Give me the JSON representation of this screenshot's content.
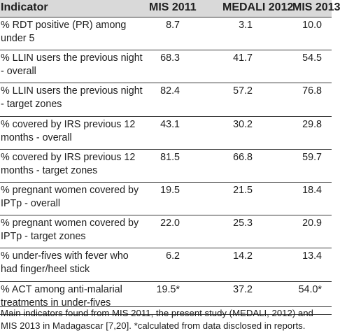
{
  "header": {
    "indicator": "Indicator",
    "col1": "MIS 2011",
    "col2": "MEDALI 2012",
    "col3": "MIS 2013"
  },
  "rows": [
    {
      "label": "% RDT positive (PR) among under 5",
      "mis2011": "8.7",
      "medali2012": "3.1",
      "mis2013": "10.0"
    },
    {
      "label": "% LLIN users the previous night - overall",
      "mis2011": "68.3",
      "medali2012": "41.7",
      "mis2013": "54.5"
    },
    {
      "label": "% LLIN users the previous night - target zones",
      "mis2011": "82.4",
      "medali2012": "57.2",
      "mis2013": "76.8"
    },
    {
      "label": "% covered by IRS previous 12 months - overall",
      "mis2011": "43.1",
      "medali2012": "30.2",
      "mis2013": "29.8"
    },
    {
      "label": "% covered by IRS previous 12 months - target zones",
      "mis2011": "81.5",
      "medali2012": "66.8",
      "mis2013": "59.7"
    },
    {
      "label": "% pregnant women covered by IPTp - overall",
      "mis2011": "19.5",
      "medali2012": "21.5",
      "mis2013": "18.4"
    },
    {
      "label": "% pregnant women covered by IPTp - target zones",
      "mis2011": "22.0",
      "medali2012": "25.3",
      "mis2013": "20.9"
    },
    {
      "label": "% under-fives with fever who had finger/heel stick",
      "mis2011": "6.2",
      "medali2012": "14.2",
      "mis2013": "13.4"
    },
    {
      "label": "% ACT among anti-malarial treatments in under-fives",
      "mis2011": "19.5*",
      "medali2012": "37.2",
      "mis2013": "54.0*"
    }
  ],
  "footnote": {
    "line1": "Main indicators found from MIS 2011, the present study (MEDALI, 2012) and",
    "line2": "MIS 2013 in Madagascar [7,20]. *calculated from data disclosed in reports."
  }
}
